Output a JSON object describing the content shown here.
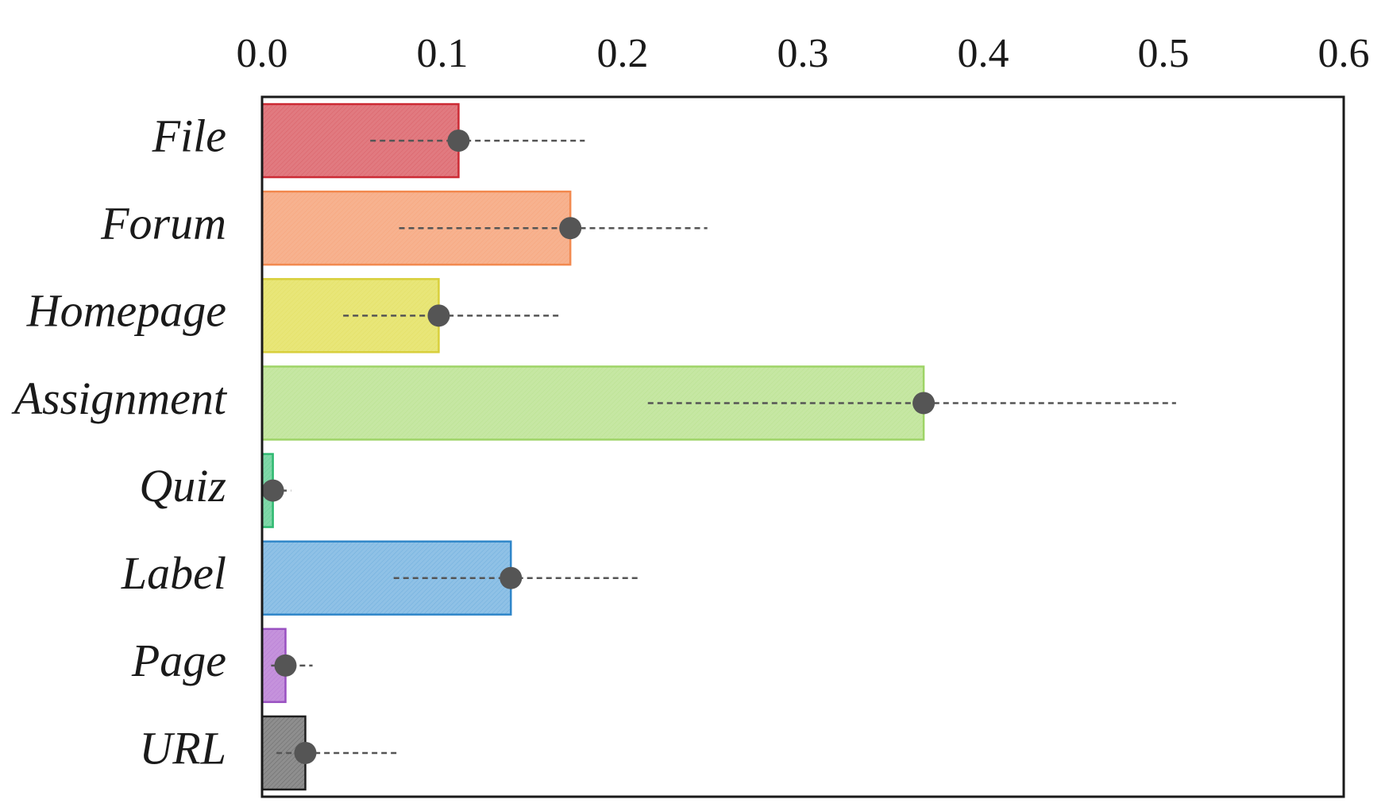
{
  "chart_data": {
    "type": "bar",
    "orientation": "horizontal",
    "x_axis_position": "top",
    "xlim": [
      0,
      0.6
    ],
    "xticks": [
      "0.0",
      "0.1",
      "0.2",
      "0.3",
      "0.4",
      "0.5",
      "0.6"
    ],
    "xtick_values": [
      0,
      0.1,
      0.2,
      0.3,
      0.4,
      0.5,
      0.6
    ],
    "grid": false,
    "categories": [
      "File",
      "Forum",
      "Homepage",
      "Assignment",
      "Quiz",
      "Label",
      "Page",
      "URL"
    ],
    "values": [
      0.109,
      0.171,
      0.098,
      0.367,
      0.006,
      0.138,
      0.013,
      0.024
    ],
    "error_low": [
      0.06,
      0.076,
      0.045,
      0.214,
      0.0,
      0.073,
      0.005,
      0.008
    ],
    "error_high": [
      0.179,
      0.247,
      0.165,
      0.507,
      0.016,
      0.209,
      0.028,
      0.076
    ],
    "bar_colors": [
      "#e17a80",
      "#f7b28f",
      "#e8e678",
      "#c6e7a3",
      "#7fd8a8",
      "#8fc1e6",
      "#c592dc",
      "#8e8e8e"
    ],
    "bar_edge_colors": [
      "#cc2a34",
      "#f2894f",
      "#d8cf3b",
      "#9ed467",
      "#2fb971",
      "#2f86c9",
      "#9951c1",
      "#1f1f1f"
    ],
    "point_color": "#555555"
  }
}
